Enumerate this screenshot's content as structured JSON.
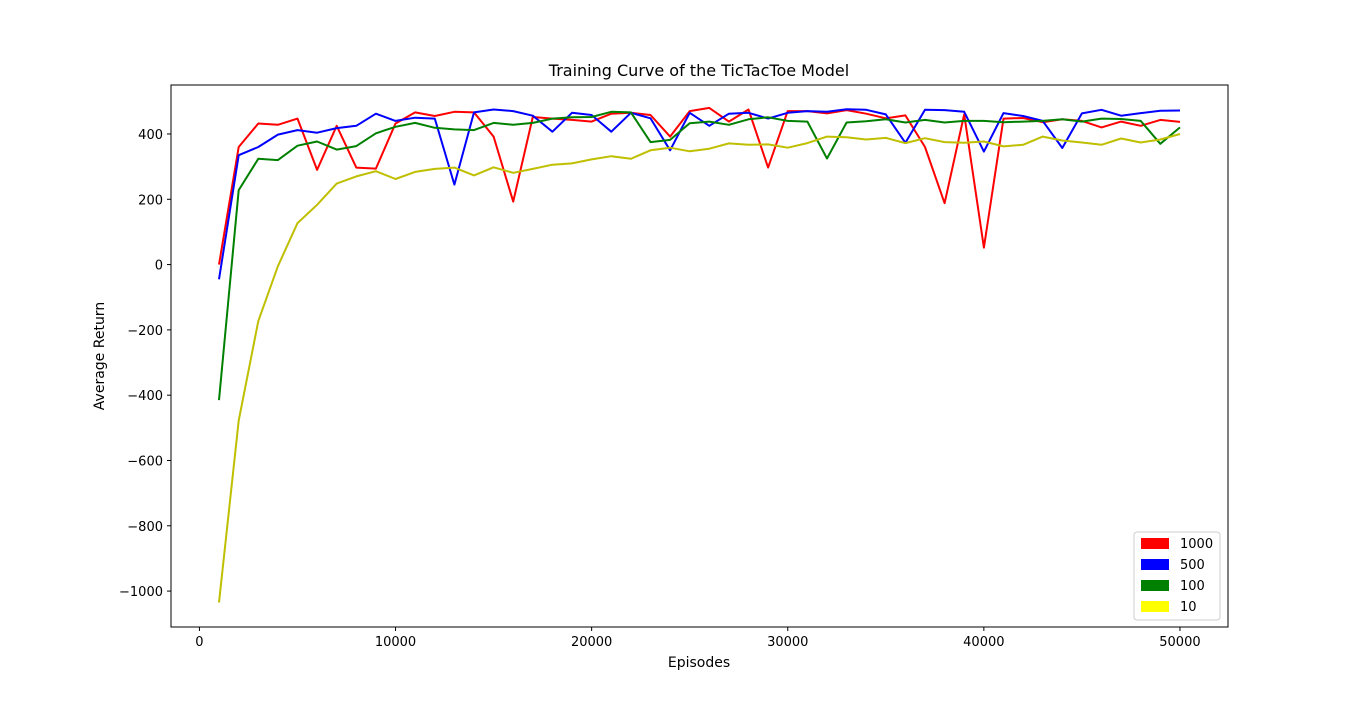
{
  "chart_data": {
    "type": "line",
    "title": "Training Curve of the TicTacToe Model",
    "xlabel": "Episodes",
    "ylabel": "Average Return",
    "xlim": [
      -1450,
      52450
    ],
    "ylim": [
      -1110,
      550
    ],
    "x_ticks": [
      0,
      10000,
      20000,
      30000,
      40000,
      50000
    ],
    "x_tick_labels": [
      "0",
      "10000",
      "20000",
      "30000",
      "40000",
      "50000"
    ],
    "y_ticks": [
      -1000,
      -800,
      -600,
      -400,
      -200,
      0,
      200,
      400
    ],
    "y_tick_labels": [
      "−1000",
      "−800",
      "−600",
      "−400",
      "−200",
      "0",
      "200",
      "400"
    ],
    "grid": false,
    "legend_position": "lower-right",
    "x": [
      1000,
      2000,
      3000,
      4000,
      5000,
      6000,
      7000,
      8000,
      9000,
      10000,
      11000,
      12000,
      13000,
      14000,
      15000,
      16000,
      17000,
      18000,
      19000,
      20000,
      21000,
      22000,
      23000,
      24000,
      25000,
      26000,
      27000,
      28000,
      29000,
      30000,
      31000,
      32000,
      33000,
      34000,
      35000,
      36000,
      37000,
      38000,
      39000,
      40000,
      41000,
      42000,
      43000,
      44000,
      45000,
      46000,
      47000,
      48000,
      49000,
      50000
    ],
    "series": [
      {
        "name": "1000",
        "color": "#ff0000",
        "legend_color": "#ff0000",
        "values": [
          0,
          360,
          432,
          428,
          447,
          290,
          425,
          297,
          294,
          432,
          466,
          455,
          468,
          466,
          392,
          193,
          452,
          447,
          443,
          438,
          462,
          465,
          458,
          392,
          470,
          480,
          438,
          475,
          297,
          470,
          470,
          463,
          473,
          462,
          448,
          457,
          360,
          188,
          460,
          52,
          447,
          449,
          436,
          445,
          440,
          420,
          438,
          425,
          443,
          437
        ]
      },
      {
        "name": "500",
        "color": "#0000ff",
        "legend_color": "#0000ff",
        "values": [
          -45,
          335,
          360,
          398,
          412,
          404,
          418,
          425,
          462,
          440,
          450,
          447,
          245,
          466,
          475,
          470,
          456,
          407,
          465,
          458,
          407,
          465,
          448,
          350,
          465,
          425,
          462,
          465,
          447,
          465,
          470,
          468,
          476,
          474,
          460,
          373,
          474,
          473,
          468,
          346,
          464,
          455,
          440,
          357,
          463,
          474,
          456,
          464,
          471,
          472
        ]
      },
      {
        "name": "100",
        "color": "#008000",
        "legend_color": "#008000",
        "values": [
          -415,
          228,
          324,
          320,
          364,
          377,
          352,
          363,
          402,
          422,
          434,
          419,
          414,
          412,
          434,
          428,
          434,
          447,
          451,
          452,
          468,
          466,
          375,
          382,
          433,
          438,
          428,
          445,
          451,
          440,
          438,
          325,
          435,
          439,
          445,
          435,
          443,
          435,
          440,
          440,
          436,
          438,
          440,
          445,
          438,
          447,
          446,
          440,
          370,
          420
        ]
      },
      {
        "name": "10",
        "color": "#bfbf00",
        "legend_color": "#ffff00",
        "values": [
          -1035,
          -478,
          -173,
          -5,
          127,
          183,
          248,
          270,
          286,
          262,
          284,
          293,
          297,
          273,
          298,
          281,
          293,
          306,
          310,
          322,
          332,
          324,
          350,
          358,
          347,
          355,
          371,
          367,
          368,
          358,
          372,
          392,
          390,
          383,
          388,
          372,
          387,
          375,
          373,
          377,
          362,
          367,
          392,
          380,
          374,
          367,
          386,
          374,
          383,
          400
        ]
      }
    ]
  }
}
